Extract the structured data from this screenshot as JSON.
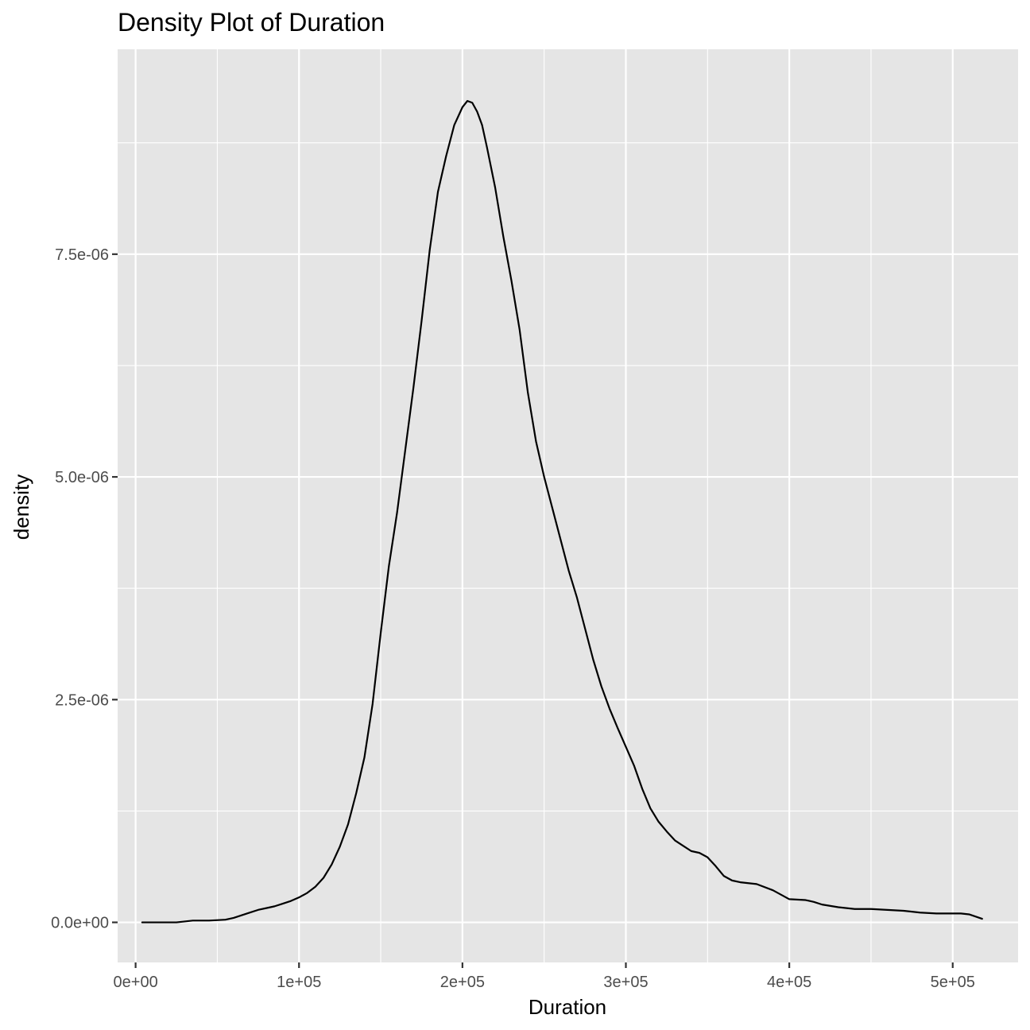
{
  "chart_data": {
    "type": "line",
    "title": "Density Plot of Duration",
    "xlabel": "Duration",
    "ylabel": "density",
    "xlim": [
      -11000,
      540000
    ],
    "ylim": [
      -4.5e-07,
      9.8e-06
    ],
    "x_ticks": [
      0,
      100000,
      200000,
      300000,
      400000,
      500000
    ],
    "x_tick_labels": [
      "0e+00",
      "1e+05",
      "2e+05",
      "3e+05",
      "4e+05",
      "5e+05"
    ],
    "y_ticks": [
      0,
      2.5e-06,
      5e-06,
      7.5e-06
    ],
    "y_tick_labels": [
      "0.0e+00",
      "2.5e-06",
      "5.0e-06",
      "7.5e-06"
    ],
    "grid": true,
    "background": "#e5e5e5",
    "gridline_color": "#ffffff",
    "line_color": "#000000",
    "series": [
      {
        "x": [
          4000,
          10000,
          20000,
          25000,
          30000,
          35000,
          45000,
          55000,
          60000,
          65000,
          70000,
          75000,
          80000,
          85000,
          90000,
          95000,
          100000,
          105000,
          110000,
          115000,
          120000,
          125000,
          130000,
          135000,
          140000,
          145000,
          150000,
          155000,
          160000,
          165000,
          170000,
          175000,
          180000,
          185000,
          190000,
          195000,
          200000,
          203000,
          206000,
          209000,
          212000,
          215000,
          220000,
          225000,
          230000,
          235000,
          240000,
          245000,
          250000,
          255000,
          260000,
          265000,
          270000,
          275000,
          280000,
          285000,
          290000,
          295000,
          300000,
          305000,
          310000,
          315000,
          320000,
          325000,
          330000,
          335000,
          340000,
          345000,
          350000,
          355000,
          360000,
          365000,
          370000,
          380000,
          390000,
          400000,
          410000,
          415000,
          420000,
          430000,
          440000,
          450000,
          460000,
          470000,
          480000,
          490000,
          500000,
          505000,
          510000,
          518000
        ],
        "y": [
          0.0,
          0.0,
          0.0,
          0.0,
          1e-08,
          2e-08,
          2e-08,
          3e-08,
          5e-08,
          8e-08,
          1.1e-07,
          1.4e-07,
          1.6e-07,
          1.8e-07,
          2.1e-07,
          2.4e-07,
          2.8e-07,
          3.3e-07,
          4e-07,
          5e-07,
          6.5e-07,
          8.5e-07,
          1.1e-06,
          1.45e-06,
          1.85e-06,
          2.45e-06,
          3.25e-06,
          4e-06,
          4.6e-06,
          5.3e-06,
          6e-06,
          6.75e-06,
          7.55e-06,
          8.2e-06,
          8.6e-06,
          8.95e-06,
          9.15e-06,
          9.22e-06,
          9.2e-06,
          9.1e-06,
          8.95e-06,
          8.7e-06,
          8.25e-06,
          7.7e-06,
          7.2e-06,
          6.65e-06,
          5.95e-06,
          5.4e-06,
          5e-06,
          4.65e-06,
          4.3e-06,
          3.95e-06,
          3.65e-06,
          3.3e-06,
          2.95e-06,
          2.65e-06,
          2.4e-06,
          2.18e-06,
          1.97e-06,
          1.76e-06,
          1.5e-06,
          1.28e-06,
          1.13e-06,
          1.02e-06,
          9.2e-07,
          8.6e-07,
          8e-07,
          7.8e-07,
          7.3e-07,
          6.3e-07,
          5.2e-07,
          4.7e-07,
          4.5e-07,
          4.3e-07,
          3.6e-07,
          2.6e-07,
          2.5e-07,
          2.3e-07,
          2e-07,
          1.7e-07,
          1.5e-07,
          1.5e-07,
          1.4e-07,
          1.3e-07,
          1.1e-07,
          1e-07,
          1e-07,
          1e-07,
          9e-08,
          4e-08
        ]
      }
    ]
  }
}
